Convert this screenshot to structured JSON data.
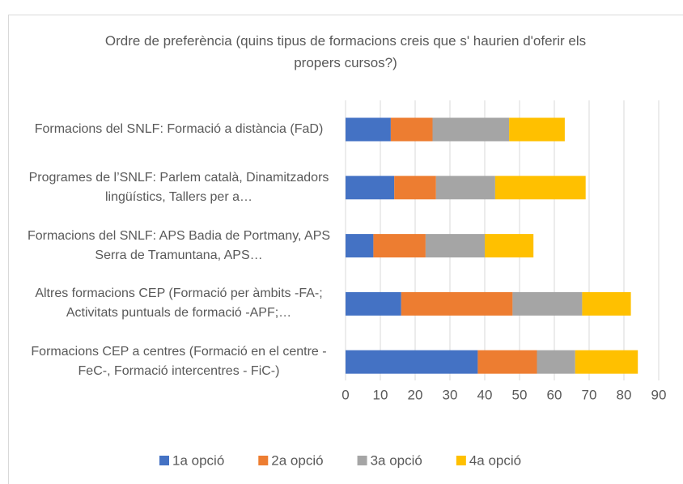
{
  "chart_data": {
    "type": "stacked-bar-horizontal",
    "title": "Ordre de preferència (quins tipus de formacions creis que s' haurien d'oferir els propers cursos?)",
    "categories": [
      "Formacions del SNLF: Formació a distància (FaD)",
      "Programes de l’SNLF: Parlem català, Dinamitzadors lingüístics,  Tallers per a…",
      "Formacions del SNLF: APS Badia de Portmany, APS Serra de Tramuntana, APS…",
      "Altres formacions CEP (Formació per àmbits -FA-; Activitats puntuals de formació -APF;…",
      "Formacions CEP a centres (Formació en el centre -FeC-, Formació intercentres - FiC-)"
    ],
    "series": [
      {
        "name": "1a opció",
        "color": "#4472c4",
        "values": [
          13,
          14,
          8,
          16,
          38
        ]
      },
      {
        "name": "2a opció",
        "color": "#ed7d31",
        "values": [
          12,
          12,
          15,
          32,
          17
        ]
      },
      {
        "name": "3a opció",
        "color": "#a5a5a5",
        "values": [
          22,
          17,
          17,
          20,
          11
        ]
      },
      {
        "name": "4a opció",
        "color": "#ffc000",
        "values": [
          16,
          26,
          14,
          14,
          18
        ]
      }
    ],
    "xlim": [
      0,
      90
    ],
    "xticks": [
      0,
      10,
      20,
      30,
      40,
      50,
      60,
      70,
      80,
      90
    ],
    "grid": true,
    "legend": "bottom"
  }
}
